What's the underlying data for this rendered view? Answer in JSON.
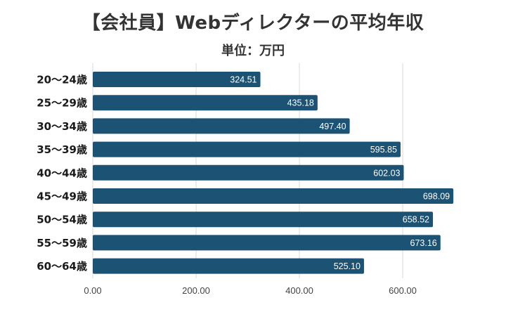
{
  "title": "【会社員】Webディレクターの平均年収",
  "subtitle": "単位：万円",
  "colors": {
    "bar": "#1c5274",
    "grid": "#d9d9d9",
    "value_text": "#ffffff",
    "title_text": "#333333"
  },
  "chart_data": {
    "type": "bar",
    "orientation": "horizontal",
    "title": "【会社員】Webディレクターの平均年収",
    "subtitle": "単位：万円",
    "categories": [
      "20〜24歳",
      "25〜29歳",
      "30〜34歳",
      "35〜39歳",
      "40〜44歳",
      "45〜49歳",
      "50〜54歳",
      "55〜59歳",
      "60〜64歳"
    ],
    "values": [
      324.51,
      435.18,
      497.4,
      595.85,
      602.03,
      698.09,
      658.52,
      673.16,
      525.1
    ],
    "value_labels": [
      "324.51",
      "435.18",
      "497.40",
      "595.85",
      "602.03",
      "698.09",
      "658.52",
      "673.16",
      "525.10"
    ],
    "xlabel": "",
    "ylabel": "",
    "xlim": [
      0,
      800
    ],
    "xticks": [
      0,
      200,
      400,
      600
    ],
    "xtick_labels": [
      "0.00",
      "200.00",
      "400.00",
      "600.00"
    ],
    "grid": true,
    "legend": "none"
  }
}
